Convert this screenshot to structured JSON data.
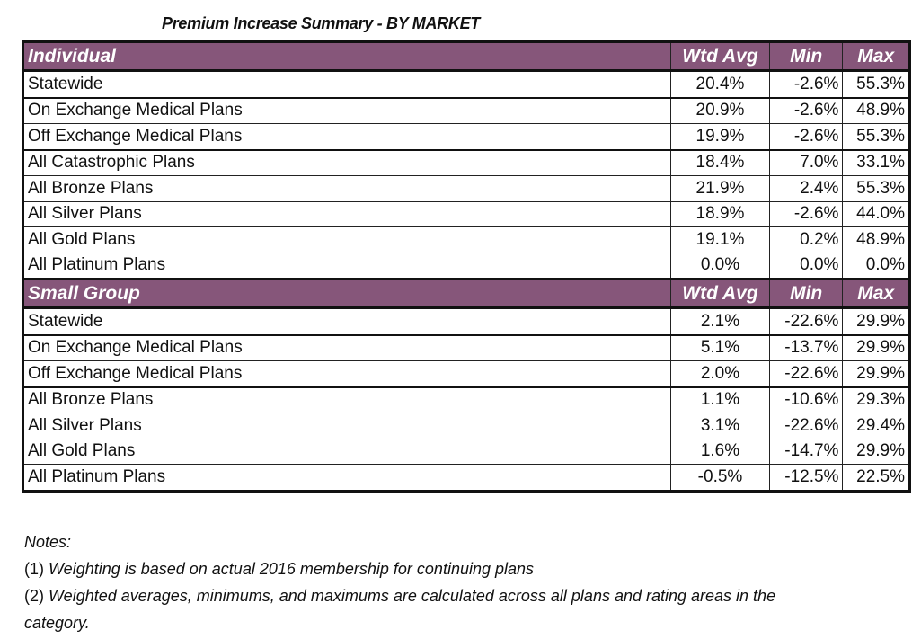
{
  "title": "Premium Increase Summary - BY MARKET",
  "sections": [
    {
      "name": "Individual",
      "columns": [
        "Wtd Avg",
        "Min",
        "Max"
      ],
      "rows": [
        {
          "label": "Statewide",
          "wtd_avg": "20.4%",
          "min": "-2.6%",
          "max": "55.3%"
        },
        {
          "label": "On Exchange Medical Plans",
          "wtd_avg": "20.9%",
          "min": "-2.6%",
          "max": "48.9%"
        },
        {
          "label": "Off Exchange Medical Plans",
          "wtd_avg": "19.9%",
          "min": "-2.6%",
          "max": "55.3%"
        },
        {
          "label": "All Catastrophic Plans",
          "wtd_avg": "18.4%",
          "min": "7.0%",
          "max": "33.1%"
        },
        {
          "label": "All Bronze Plans",
          "wtd_avg": "21.9%",
          "min": "2.4%",
          "max": "55.3%"
        },
        {
          "label": "All Silver Plans",
          "wtd_avg": "18.9%",
          "min": "-2.6%",
          "max": "44.0%"
        },
        {
          "label": "All Gold Plans",
          "wtd_avg": "19.1%",
          "min": "0.2%",
          "max": "48.9%"
        },
        {
          "label": "All Platinum Plans",
          "wtd_avg": "0.0%",
          "min": "0.0%",
          "max": "0.0%"
        }
      ]
    },
    {
      "name": "Small Group",
      "columns": [
        "Wtd Avg",
        "Min",
        "Max"
      ],
      "rows": [
        {
          "label": "Statewide",
          "wtd_avg": "2.1%",
          "min": "-22.6%",
          "max": "29.9%"
        },
        {
          "label": "On Exchange Medical Plans",
          "wtd_avg": "5.1%",
          "min": "-13.7%",
          "max": "29.9%"
        },
        {
          "label": "Off Exchange Medical Plans",
          "wtd_avg": "2.0%",
          "min": "-22.6%",
          "max": "29.9%"
        },
        {
          "label": "All Bronze Plans",
          "wtd_avg": "1.1%",
          "min": "-10.6%",
          "max": "29.3%"
        },
        {
          "label": "All Silver Plans",
          "wtd_avg": "3.1%",
          "min": "-22.6%",
          "max": "29.4%"
        },
        {
          "label": "All Gold Plans",
          "wtd_avg": "1.6%",
          "min": "-14.7%",
          "max": "29.9%"
        },
        {
          "label": "All Platinum Plans",
          "wtd_avg": "-0.5%",
          "min": "-12.5%",
          "max": "22.5%"
        }
      ]
    }
  ],
  "notes": {
    "heading": "Notes:",
    "items": [
      {
        "num": "(1)",
        "text": "Weighting is based on actual 2016 membership for continuing plans"
      },
      {
        "num": "(2)",
        "text": "Weighted averages, minimums, and maximums are calculated across all plans and rating areas in the category."
      }
    ]
  },
  "colors": {
    "header_bg": "#86567a",
    "header_text": "#ffffff"
  }
}
